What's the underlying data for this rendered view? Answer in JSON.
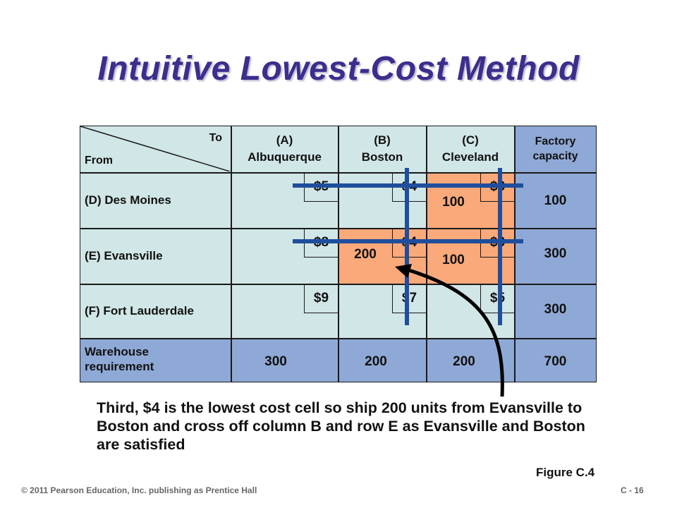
{
  "title": "Intuitive Lowest-Cost Method",
  "header": {
    "to": "To",
    "from": "From",
    "col_a_code": "(A)",
    "col_a_name": "Albuquerque",
    "col_b_code": "(B)",
    "col_b_name": "Boston",
    "col_c_code": "(C)",
    "col_c_name": "Cleveland",
    "capacity_line1": "Factory",
    "capacity_line2": "capacity"
  },
  "rows": [
    {
      "label": "(D) Des Moines",
      "costs": [
        "$5",
        "$4",
        "$3"
      ],
      "alloc": [
        "",
        "",
        "100"
      ],
      "capacity": "100"
    },
    {
      "label": "(E) Evansville",
      "costs": [
        "$8",
        "$4",
        "$3"
      ],
      "alloc": [
        "",
        "200",
        "100"
      ],
      "capacity": "300"
    },
    {
      "label": "(F) Fort Lauderdale",
      "costs": [
        "$9",
        "$7",
        "$5"
      ],
      "alloc": [
        "",
        "",
        ""
      ],
      "capacity": "300"
    }
  ],
  "requirement": {
    "label_line1": "Warehouse",
    "label_line2": "requirement",
    "values": [
      "300",
      "200",
      "200"
    ],
    "total": "700"
  },
  "description": "Third, $4 is the lowest cost cell so ship 200 units from Evansville to Boston and cross off column B and row E as Evansville and Boston are satisfied",
  "figure": "Figure C.4",
  "copyright": "© 2011 Pearson Education, Inc. publishing as Prentice Hall",
  "page_number": "C - 16",
  "colors": {
    "title": "#3b2e8c",
    "light_cell": "#d1e6e6",
    "blue_cell": "#8fa9d6",
    "orange_cell": "#f9a97a",
    "cross_line": "#1f4e9c"
  }
}
